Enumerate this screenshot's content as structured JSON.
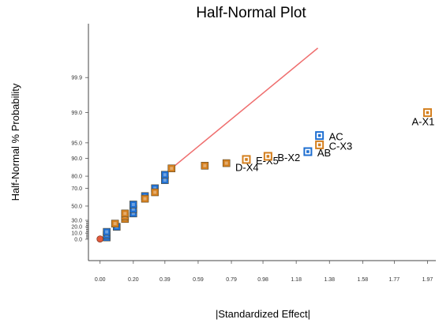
{
  "chart_data": {
    "type": "scatter",
    "title": "Half-Normal Plot",
    "xlabel": "|Standardized Effect|",
    "ylabel": "Half-Normal % Probability",
    "xlim": [
      -0.07,
      2.02
    ],
    "x_ticks": [
      "0.00",
      "0.20",
      "0.39",
      "0.59",
      "0.79",
      "0.98",
      "1.18",
      "1.38",
      "1.58",
      "1.77",
      "1.97"
    ],
    "y_ticks": [
      "0.0",
      "10.0",
      "20.0",
      "30.0",
      "50.0",
      "70.0",
      "80.0",
      "90.0",
      "95.0",
      "99.0",
      "99.9"
    ],
    "y_scale": "half-normal probability",
    "grid": false,
    "colors": {
      "negative_effect": "#1f6fd1",
      "positive_effect": "#d47f1e",
      "reference_line": "#ef6e6e",
      "base_point": "#e25a3d"
    },
    "reference_line": {
      "from": [
        0.43,
        85
      ],
      "to": [
        1.31,
        99.99
      ]
    },
    "series": [
      {
        "kind": "negative",
        "points": [
          {
            "x": 0.04,
            "y": 3
          },
          {
            "x": 0.04,
            "y": 7
          },
          {
            "x": 0.04,
            "y": 12
          },
          {
            "x": 0.1,
            "y": 20
          },
          {
            "x": 0.2,
            "y": 40
          },
          {
            "x": 0.2,
            "y": 46
          },
          {
            "x": 0.2,
            "y": 52
          },
          {
            "x": 0.27,
            "y": 62
          },
          {
            "x": 0.33,
            "y": 70
          },
          {
            "x": 0.39,
            "y": 77
          },
          {
            "x": 0.39,
            "y": 81
          },
          {
            "x": 1.32,
            "y": 96.5,
            "label": "AC"
          },
          {
            "x": 1.25,
            "y": 92.5,
            "label": "AB"
          }
        ]
      },
      {
        "kind": "positive",
        "points": [
          {
            "x": 0.09,
            "y": 25
          },
          {
            "x": 0.15,
            "y": 32
          },
          {
            "x": 0.15,
            "y": 36
          },
          {
            "x": 0.15,
            "y": 40
          },
          {
            "x": 0.27,
            "y": 59
          },
          {
            "x": 0.33,
            "y": 66
          },
          {
            "x": 0.43,
            "y": 85
          },
          {
            "x": 0.63,
            "y": 86.5
          },
          {
            "x": 0.76,
            "y": 87.8
          },
          {
            "x": 0.88,
            "y": 89.5,
            "label": "E-X5"
          },
          {
            "x": 1.01,
            "y": 90.8,
            "label": "B-X2"
          },
          {
            "x": 1.32,
            "y": 94.5,
            "label": "C-X3"
          },
          {
            "x": 1.97,
            "y": 99.0,
            "label": "A-X1"
          }
        ]
      }
    ],
    "annotations": [
      {
        "text": "D-X4",
        "x": 0.88,
        "y": 87.8
      }
    ]
  }
}
